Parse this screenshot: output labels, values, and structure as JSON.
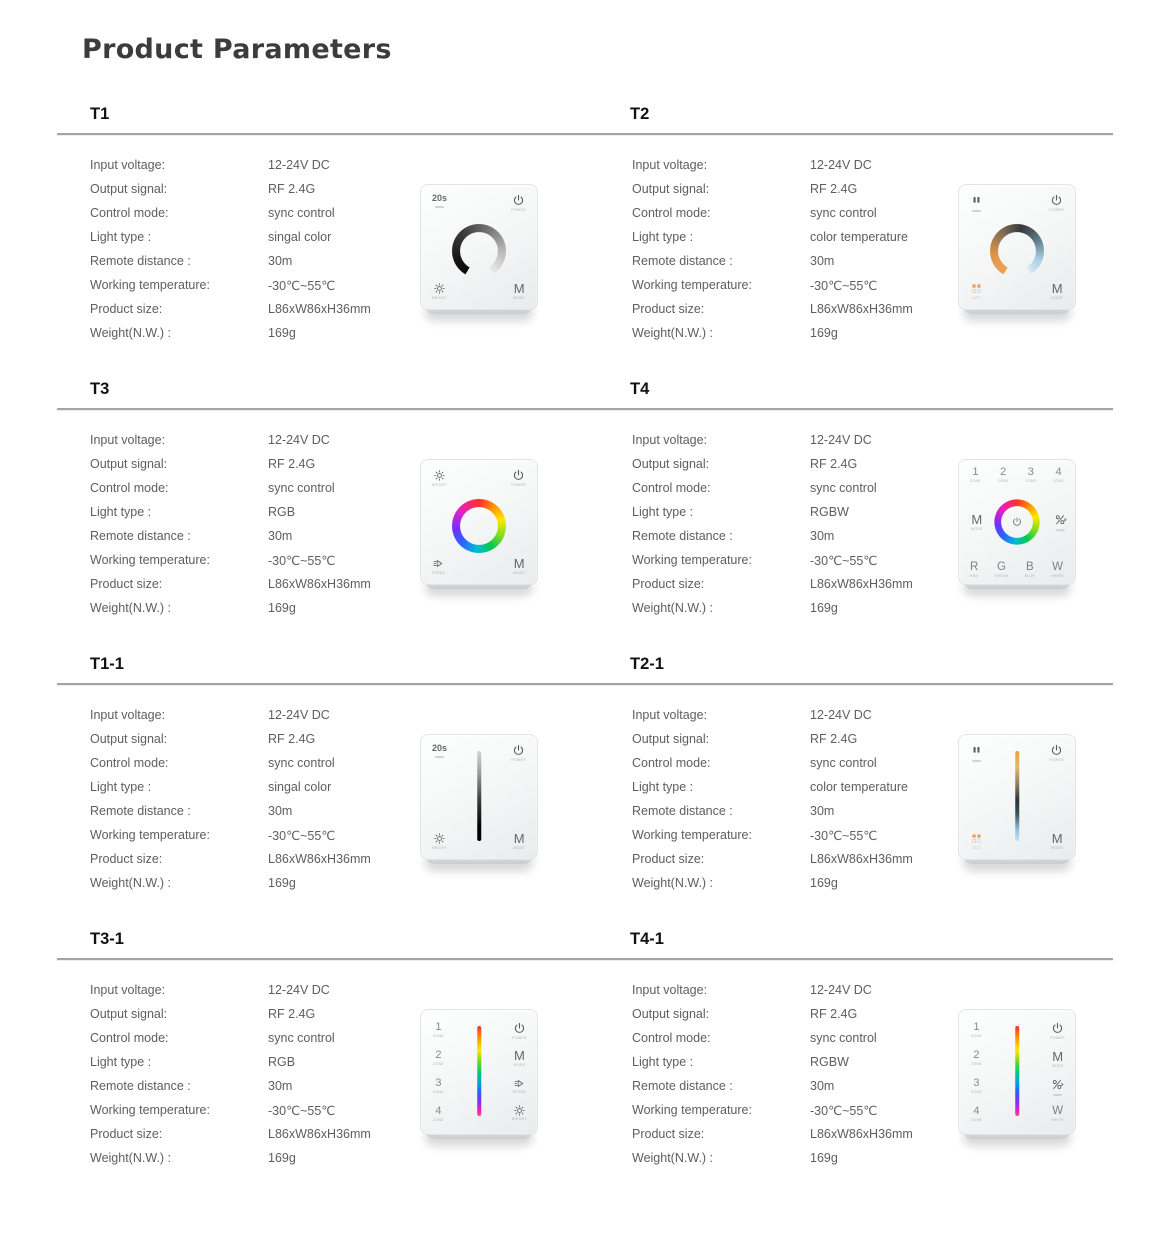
{
  "page": {
    "title": "Product Parameters"
  },
  "colors": {
    "title_text": "#3c3c3c",
    "heading_text": "#121212",
    "spec_text": "#5e5e5e",
    "divider": "#a4a4a4",
    "cct_warm": "#eda257",
    "cct_cool": "#a7cde2",
    "dim_dark": "#0a0a0a"
  },
  "spec_labels": [
    "Input voltage:",
    "Output signal:",
    "Control mode:",
    "Light type :",
    "Remote distance :",
    "Working temperature:",
    "Product size:",
    "Weight(N.W.) :"
  ],
  "products": [
    {
      "name": "T1",
      "specs": [
        "12-24V DC",
        "RF 2.4G",
        "sync control",
        "singal color",
        "30m",
        "-30℃~55℃",
        "L86xW86xH36mm",
        "169g"
      ],
      "panel": {
        "type": "dial",
        "ring": "dim",
        "corners": [
          {
            "pos": "tl",
            "text": "20s",
            "cls": "t-small",
            "sub": ""
          },
          {
            "pos": "tr",
            "icon": "power-icon",
            "sub": "Power"
          },
          {
            "pos": "bl",
            "icon": "brightness-icon",
            "sub": "Bright"
          },
          {
            "pos": "br",
            "text": "M",
            "cls": "t-m",
            "sub": "Mode"
          }
        ]
      }
    },
    {
      "name": "T2",
      "specs": [
        "12-24V DC",
        "RF 2.4G",
        "sync control",
        "color temperature",
        "30m",
        "-30℃~55℃",
        "L86xW86xH36mm",
        "169g"
      ],
      "panel": {
        "type": "dial",
        "ring": "cct",
        "corners": [
          {
            "pos": "tl",
            "icon": "pause-icon",
            "sub": ""
          },
          {
            "pos": "tr",
            "icon": "power-icon",
            "sub": "Power"
          },
          {
            "pos": "bl",
            "icon": "cct-icon",
            "sub": "CCT"
          },
          {
            "pos": "br",
            "text": "M",
            "cls": "t-m",
            "sub": "Mode"
          }
        ]
      }
    },
    {
      "name": "T3",
      "specs": [
        "12-24V DC",
        "RF 2.4G",
        "sync control",
        "RGB",
        "30m",
        "-30℃~55℃",
        "L86xW86xH36mm",
        "169g"
      ],
      "panel": {
        "type": "dial",
        "ring": "rgb",
        "corners": [
          {
            "pos": "tl",
            "icon": "brightness-icon",
            "sub": "Bright"
          },
          {
            "pos": "tr",
            "icon": "power-icon",
            "sub": "Power"
          },
          {
            "pos": "bl",
            "icon": "speed-icon",
            "sub": "Speed"
          },
          {
            "pos": "br",
            "text": "M",
            "cls": "t-m",
            "sub": "Mode"
          }
        ]
      }
    },
    {
      "name": "T4",
      "specs": [
        "12-24V DC",
        "RF 2.4G",
        "sync control",
        "RGBW",
        "30m",
        "-30℃~55℃",
        "L86xW86xH36mm",
        "169g"
      ],
      "panel": {
        "type": "dial-zones",
        "ring": "rgb",
        "center_icon": "power-icon",
        "zones": [
          {
            "text": "1",
            "cls": "t-num",
            "sub": "Zone"
          },
          {
            "text": "2",
            "cls": "t-num",
            "sub": "Zone"
          },
          {
            "text": "3",
            "cls": "t-num",
            "sub": "Zone"
          },
          {
            "text": "4",
            "cls": "t-num",
            "sub": "Zone"
          }
        ],
        "mid_left": {
          "text": "M",
          "cls": "t-m",
          "sub": "Mode"
        },
        "mid_right": {
          "icon": "speed-percent-icon",
          "sub": ""
        },
        "bottom": [
          {
            "text": "R",
            "cls": "t-letter",
            "sub": "Red"
          },
          {
            "text": "G",
            "cls": "t-letter",
            "sub": "Green"
          },
          {
            "text": "B",
            "cls": "t-letter",
            "sub": "Blue"
          },
          {
            "text": "W",
            "cls": "t-letter",
            "sub": "White"
          }
        ]
      }
    },
    {
      "name": "T1-1",
      "specs": [
        "12-24V DC",
        "RF 2.4G",
        "sync control",
        "singal color",
        "30m",
        "-30℃~55℃",
        "L86xW86xH36mm",
        "169g"
      ],
      "panel": {
        "type": "slider",
        "slider": "dim",
        "corners": [
          {
            "pos": "tl",
            "text": "20s",
            "cls": "t-small",
            "sub": ""
          },
          {
            "pos": "tr",
            "icon": "power-icon",
            "sub": "Power"
          },
          {
            "pos": "bl",
            "icon": "brightness-icon",
            "sub": "Bright"
          },
          {
            "pos": "br",
            "text": "M",
            "cls": "t-m",
            "sub": "Mode"
          }
        ]
      }
    },
    {
      "name": "T2-1",
      "specs": [
        "12-24V DC",
        "RF 2.4G",
        "sync control",
        "color temperature",
        "30m",
        "-30℃~55℃",
        "L86xW86xH36mm",
        "169g"
      ],
      "panel": {
        "type": "slider",
        "slider": "cct",
        "corners": [
          {
            "pos": "tl",
            "icon": "pause-icon",
            "sub": ""
          },
          {
            "pos": "tr",
            "icon": "power-icon",
            "sub": "Power"
          },
          {
            "pos": "bl",
            "icon": "cct-icon",
            "sub": "CCT"
          },
          {
            "pos": "br",
            "text": "M",
            "cls": "t-m",
            "sub": "Mode"
          }
        ]
      }
    },
    {
      "name": "T3-1",
      "specs": [
        "12-24V DC",
        "RF 2.4G",
        "sync control",
        "RGB",
        "30m",
        "-30℃~55℃",
        "L86xW86xH36mm",
        "169g"
      ],
      "panel": {
        "type": "slider-zones",
        "slider": "rgb",
        "zones": [
          {
            "text": "1",
            "cls": "t-num",
            "sub": "Zone"
          },
          {
            "text": "2",
            "cls": "t-num",
            "sub": "Zone"
          },
          {
            "text": "3",
            "cls": "t-num",
            "sub": "Zone"
          },
          {
            "text": "4",
            "cls": "t-num",
            "sub": "Zone"
          }
        ],
        "right": [
          {
            "icon": "power-icon",
            "sub": "Power"
          },
          {
            "text": "M",
            "cls": "t-m",
            "sub": "Mode"
          },
          {
            "icon": "speed-icon",
            "sub": "Speed"
          },
          {
            "icon": "brightness-icon",
            "sub": "Bright"
          }
        ]
      }
    },
    {
      "name": "T4-1",
      "specs": [
        "12-24V DC",
        "RF 2.4G",
        "sync control",
        "RGBW",
        "30m",
        "-30℃~55℃",
        "L86xW86xH36mm",
        "169g"
      ],
      "panel": {
        "type": "slider-zones",
        "slider": "rgb",
        "zones": [
          {
            "text": "1",
            "cls": "t-num",
            "sub": "Zone"
          },
          {
            "text": "2",
            "cls": "t-num",
            "sub": "Zone"
          },
          {
            "text": "3",
            "cls": "t-num",
            "sub": "Zone"
          },
          {
            "text": "4",
            "cls": "t-num",
            "sub": "Zone"
          }
        ],
        "right": [
          {
            "icon": "power-icon",
            "sub": "Power"
          },
          {
            "text": "M",
            "cls": "t-m",
            "sub": "Mode"
          },
          {
            "icon": "speed-percent-icon",
            "sub": ""
          },
          {
            "text": "W",
            "cls": "t-letter",
            "sub": "White"
          }
        ]
      }
    }
  ]
}
